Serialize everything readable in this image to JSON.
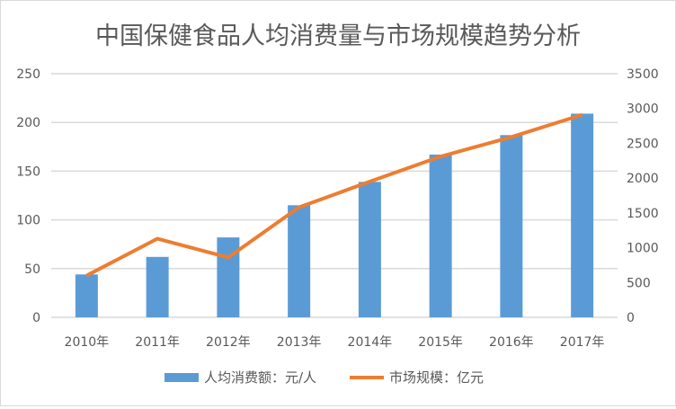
{
  "chart_data": {
    "type": "bar+line",
    "title": "中国保健食品人均消费量与市场规模趋势分析",
    "categories": [
      "2010年",
      "2011年",
      "2012年",
      "2013年",
      "2014年",
      "2015年",
      "2016年",
      "2017年"
    ],
    "series": [
      {
        "name": "人均消费额：元/人",
        "type": "bar",
        "axis": "left",
        "color": "#5b9bd5",
        "values": [
          44,
          62,
          82,
          115,
          139,
          167,
          187,
          209
        ]
      },
      {
        "name": "市场规模：亿元",
        "type": "line",
        "axis": "right",
        "color": "#ed7d31",
        "values": [
          600,
          1130,
          860,
          1580,
          1950,
          2310,
          2590,
          2910
        ]
      }
    ],
    "y_left": {
      "min": 0,
      "max": 250,
      "ticks": [
        "0",
        "50",
        "100",
        "150",
        "200",
        "250"
      ]
    },
    "y_right": {
      "min": 0,
      "max": 3500,
      "ticks": [
        "0",
        "500",
        "1000",
        "1500",
        "2000",
        "2500",
        "3000",
        "3500"
      ]
    },
    "grid": true,
    "legend": "bottom"
  }
}
